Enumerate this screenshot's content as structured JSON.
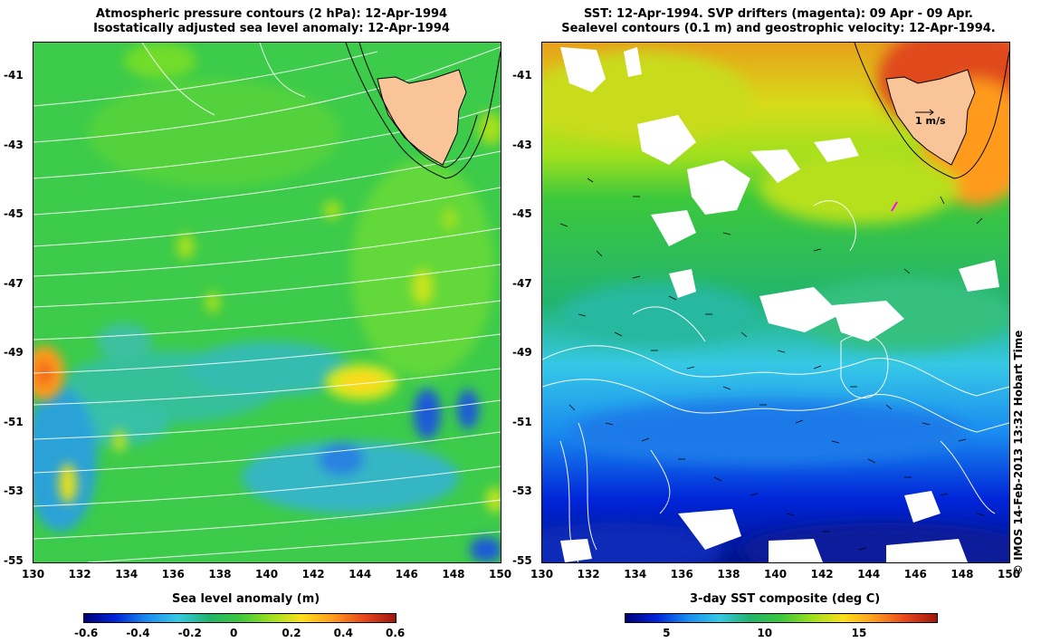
{
  "left_panel": {
    "title_line1": "Atmospheric pressure contours (2 hPa): 12-Apr-1994",
    "title_line2": "Isostatically adjusted sea level anomaly: 12-Apr-1994",
    "colorbar": {
      "label": "Sea level anomaly (m)",
      "ticks": [
        "-0.6",
        "-0.4",
        "-0.2",
        "0",
        "0.2",
        "0.4",
        "0.6"
      ],
      "range": [
        -0.6,
        0.6
      ],
      "colormap": [
        "#00007a",
        "#0024d8",
        "#1a8cf0",
        "#36c8e6",
        "#22b46e",
        "#3cc83c",
        "#9ee01e",
        "#ffe01a",
        "#ff9a1e",
        "#e8461a",
        "#a0160e"
      ]
    }
  },
  "right_panel": {
    "title_line1": "SST: 12-Apr-1994. SVP drifters (magenta): 09 Apr - 09 Apr.",
    "title_line2": "Sealevel contours (0.1 m) and geostrophic velocity: 12-Apr-1994.",
    "velocity_scale_label": "1 m/s",
    "colorbar": {
      "label": "3-day SST composite (deg C)",
      "ticks": [
        "5",
        "10",
        "15"
      ],
      "range": [
        2.5,
        19
      ],
      "colormap": [
        "#00007a",
        "#0024d8",
        "#1a8cf0",
        "#36c8e6",
        "#22b46e",
        "#3cc83c",
        "#9ee01e",
        "#ffe01a",
        "#ff9a1e",
        "#e8461a",
        "#a0160e"
      ]
    }
  },
  "axes": {
    "lat_ticks": [
      "-41",
      "-43",
      "-45",
      "-47",
      "-49",
      "-51",
      "-53",
      "-55"
    ],
    "lon_ticks": [
      "130",
      "132",
      "134",
      "136",
      "138",
      "140",
      "142",
      "144",
      "146",
      "148",
      "150"
    ],
    "lat_range": [
      -55,
      -40
    ],
    "lon_range": [
      130,
      150
    ]
  },
  "colors": {
    "land": "#f8c498",
    "contour_white": "#ffffff",
    "drifter": "#ff00ff"
  },
  "credit": "© IMOS 14-Feb-2013 13:32 Hobart Time"
}
